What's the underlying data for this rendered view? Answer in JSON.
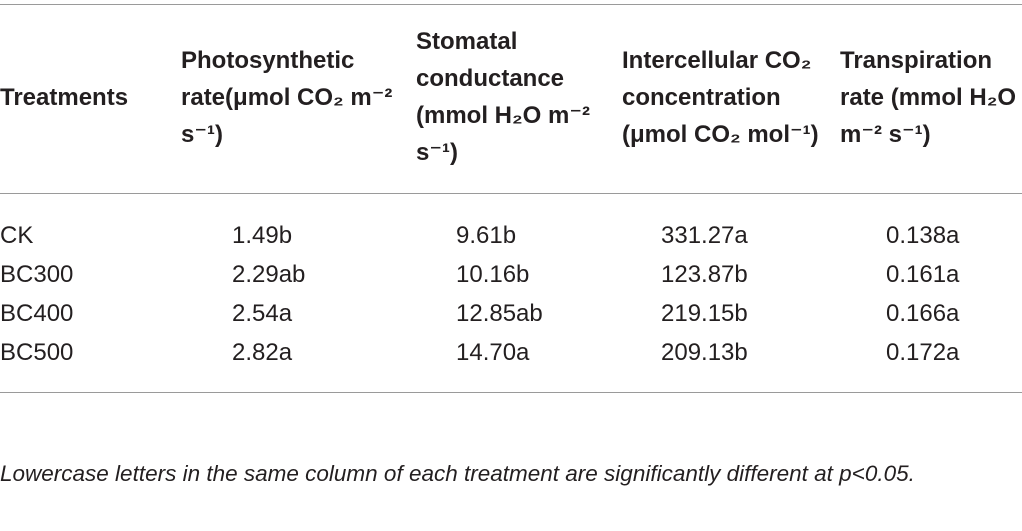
{
  "table": {
    "header": [
      "Treatments",
      "Photosynthetic rate(μmol CO₂ m⁻² s⁻¹)",
      "Stomatal conductance (mmol H₂O m⁻² s⁻¹)",
      "Intercellular CO₂ concentration (μmol CO₂ mol⁻¹)",
      "Transpiration rate (mmol H₂O m⁻² s⁻¹)"
    ],
    "rows": [
      [
        "CK",
        "1.49b",
        "9.61b",
        "331.27a",
        "0.138a"
      ],
      [
        "BC300",
        "2.29ab",
        "10.16b",
        "123.87b",
        "0.161a"
      ],
      [
        "BC400",
        "2.54a",
        "12.85ab",
        "219.15b",
        "0.166a"
      ],
      [
        "BC500",
        "2.82a",
        "14.70a",
        "209.13b",
        "0.172a"
      ]
    ]
  },
  "footnote": "Lowercase letters in the same column of each treatment are significantly different at p<0.05."
}
